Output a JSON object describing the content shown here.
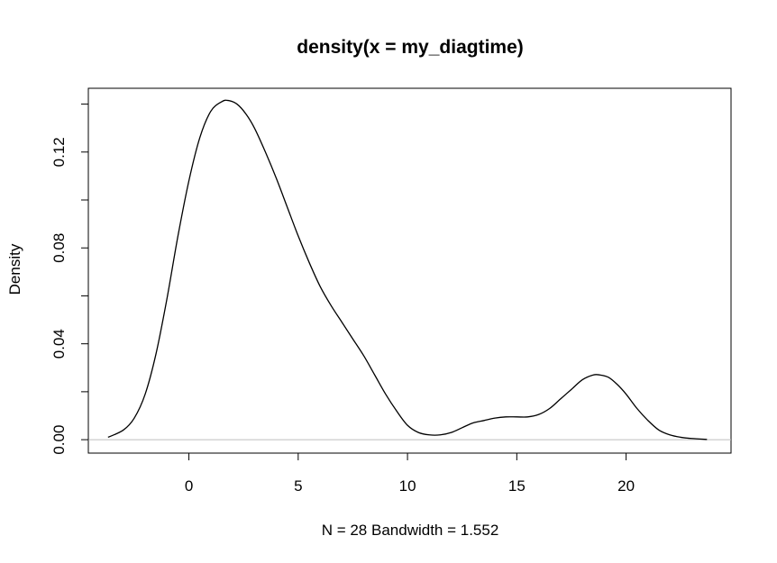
{
  "chart_data": {
    "type": "line",
    "title": "density(x = my_diagtime)",
    "xlabel": "N = 28   Bandwidth = 1.552",
    "ylabel": "Density",
    "xlim": [
      -4.6,
      24.8
    ],
    "ylim": [
      -0.0056,
      0.1466
    ],
    "x_ticks": [
      0,
      5,
      10,
      15,
      20
    ],
    "x_tick_labels": [
      "0",
      "5",
      "10",
      "15",
      "20"
    ],
    "y_ticks": [
      0.0,
      0.02,
      0.04,
      0.06,
      0.08,
      0.1,
      0.12,
      0.14
    ],
    "y_tick_labels": [
      "0.00",
      "",
      "0.04",
      "",
      "0.08",
      "",
      "0.12",
      ""
    ],
    "grid": false,
    "baseline_y": 0,
    "series": [
      {
        "color": "#000000",
        "x": [
          -3.7,
          -3.0,
          -2.5,
          -2.0,
          -1.5,
          -1.0,
          -0.5,
          0.0,
          0.5,
          1.0,
          1.5,
          1.8,
          2.2,
          2.6,
          3.0,
          3.5,
          4.0,
          4.5,
          5.0,
          5.5,
          6.0,
          6.5,
          7.0,
          7.5,
          8.0,
          8.5,
          9.0,
          9.5,
          10.0,
          10.5,
          11.0,
          11.5,
          12.0,
          12.5,
          13.0,
          13.5,
          14.0,
          14.5,
          15.0,
          15.5,
          16.0,
          16.5,
          17.0,
          17.5,
          18.0,
          18.5,
          18.8,
          19.2,
          19.6,
          20.0,
          20.5,
          21.0,
          21.5,
          22.0,
          22.5,
          23.0,
          23.7
        ],
        "y": [
          0.001,
          0.004,
          0.009,
          0.019,
          0.036,
          0.059,
          0.085,
          0.108,
          0.126,
          0.137,
          0.141,
          0.1415,
          0.14,
          0.136,
          0.13,
          0.12,
          0.109,
          0.097,
          0.085,
          0.074,
          0.064,
          0.056,
          0.049,
          0.042,
          0.035,
          0.027,
          0.019,
          0.012,
          0.006,
          0.003,
          0.002,
          0.002,
          0.003,
          0.005,
          0.007,
          0.008,
          0.009,
          0.0095,
          0.0095,
          0.0095,
          0.0105,
          0.013,
          0.017,
          0.021,
          0.025,
          0.027,
          0.027,
          0.026,
          0.023,
          0.019,
          0.013,
          0.008,
          0.004,
          0.002,
          0.001,
          0.0005,
          0.0001
        ]
      }
    ]
  }
}
